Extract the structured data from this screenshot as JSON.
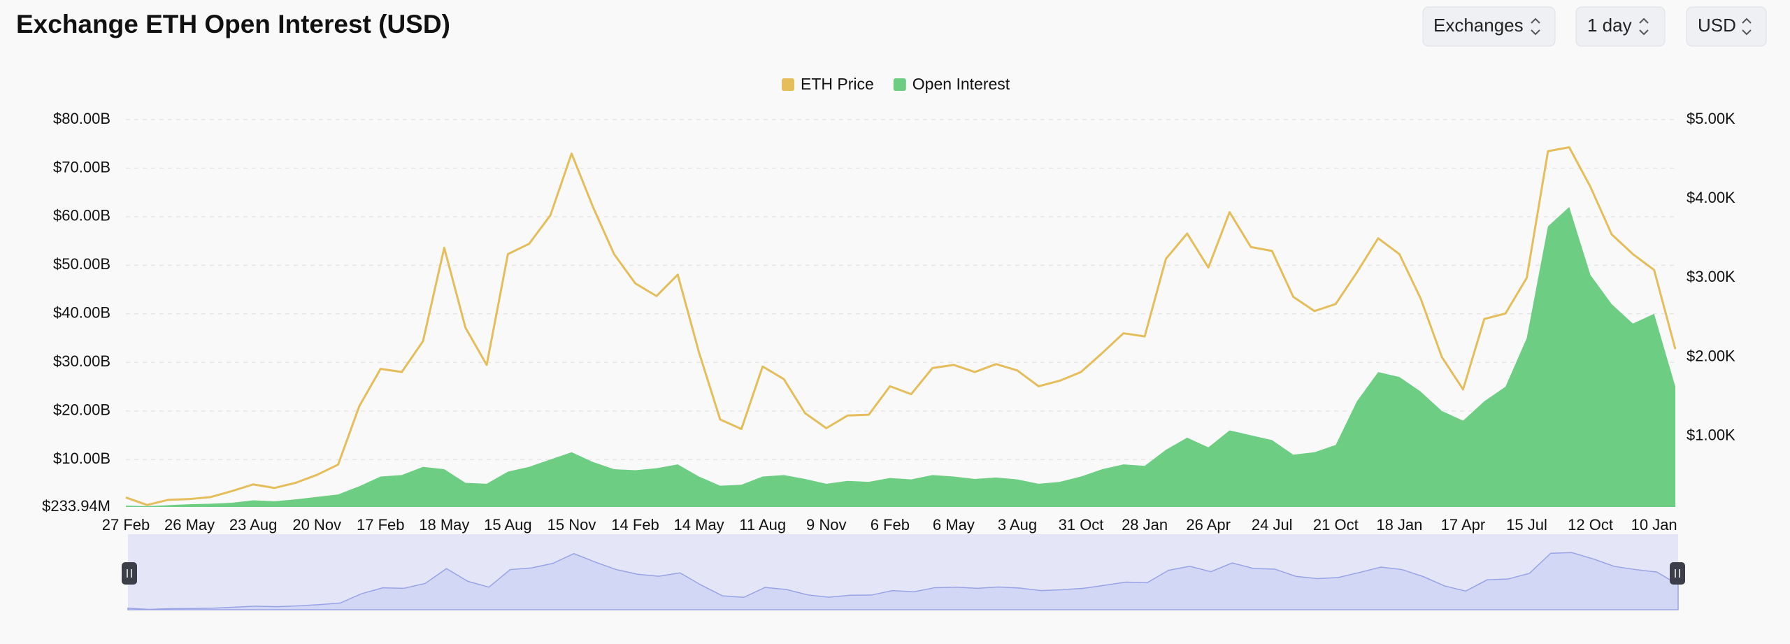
{
  "controls": [
    "Exchanges",
    "1 day",
    "USD"
  ],
  "chart_data": {
    "type": "line",
    "title": "Exchange ETH Open Interest (USD)",
    "categories": [
      "27 Feb",
      null,
      null,
      "26 May",
      null,
      null,
      "23 Aug",
      null,
      null,
      "20 Nov",
      null,
      null,
      "17 Feb",
      null,
      null,
      "18 May",
      null,
      null,
      "15 Aug",
      null,
      null,
      "15 Nov",
      null,
      null,
      "14 Feb",
      null,
      null,
      "14 May",
      null,
      null,
      "11 Aug",
      null,
      null,
      "9 Nov",
      null,
      null,
      "6 Feb",
      null,
      null,
      "6 May",
      null,
      null,
      "3 Aug",
      null,
      null,
      "31 Oct",
      null,
      null,
      "28 Jan",
      null,
      null,
      "26 Apr",
      null,
      null,
      "24 Jul",
      null,
      null,
      "21 Oct",
      null,
      null,
      "18 Jan",
      null,
      null,
      "17 Apr",
      null,
      null,
      "15 Jul",
      null,
      null,
      "12 Oct",
      null,
      null,
      "10 Jan",
      null
    ],
    "series": [
      {
        "name": "ETH Price",
        "color": "#e5bd5b",
        "axis": "y2",
        "type": "line",
        "values": [
          225,
          130,
          195,
          205,
          230,
          305,
          390,
          345,
          410,
          510,
          640,
          1380,
          1850,
          1810,
          2200,
          3380,
          2370,
          1900,
          3300,
          3430,
          3790,
          4570,
          3900,
          3300,
          2930,
          2770,
          3040,
          2060,
          1210,
          1090,
          1880,
          1720,
          1290,
          1100,
          1260,
          1270,
          1630,
          1530,
          1860,
          1900,
          1810,
          1910,
          1830,
          1630,
          1700,
          1810,
          2050,
          2300,
          2260,
          3240,
          3560,
          3130,
          3830,
          3390,
          3340,
          2760,
          2580,
          2670,
          3070,
          3500,
          3300,
          2740,
          2000,
          1590,
          2480,
          2550,
          3000,
          4600,
          4650,
          4150,
          3550,
          3300,
          3100,
          2100
        ]
      },
      {
        "name": "Open Interest",
        "color": "#6dcd82",
        "type": "area",
        "values": [
          500000000,
          400000000,
          600000000,
          800000000,
          900000000,
          1100000000,
          1600000000,
          1400000000,
          1800000000,
          2300000000,
          2800000000,
          4500000000,
          6500000000,
          6800000000,
          8500000000,
          8000000000,
          5200000000,
          5000000000,
          7500000000,
          8500000000,
          10000000000,
          11500000000,
          9500000000,
          8000000000,
          7800000000,
          8200000000,
          9000000000,
          6500000000,
          4600000000,
          4800000000,
          6500000000,
          6800000000,
          6000000000,
          5000000000,
          5600000000,
          5400000000,
          6200000000,
          5900000000,
          6800000000,
          6500000000,
          6000000000,
          6300000000,
          5900000000,
          5000000000,
          5400000000,
          6500000000,
          8000000000,
          9000000000,
          8700000000,
          12000000000,
          14500000000,
          12500000000,
          16000000000,
          15000000000,
          14000000000,
          11000000000,
          11500000000,
          13000000000,
          22000000000,
          28000000000,
          27000000000,
          24000000000,
          20000000000,
          18000000000,
          22000000000,
          25000000000,
          35000000000,
          58000000000,
          62000000000,
          48000000000,
          42000000000,
          38000000000,
          40000000000,
          25000000000
        ]
      }
    ],
    "ylim": [
      233940000,
      80000000000
    ],
    "yticks": [
      {
        "value": 233940000,
        "label": "$233.94M"
      },
      {
        "value": 10000000000,
        "label": "$10.00B"
      },
      {
        "value": 20000000000,
        "label": "$20.00B"
      },
      {
        "value": 30000000000,
        "label": "$30.00B"
      },
      {
        "value": 40000000000,
        "label": "$40.00B"
      },
      {
        "value": 50000000000,
        "label": "$50.00B"
      },
      {
        "value": 60000000000,
        "label": "$60.00B"
      },
      {
        "value": 70000000000,
        "label": "$70.00B"
      },
      {
        "value": 80000000000,
        "label": "$80.00B"
      }
    ],
    "y2lim": [
      105,
      5000
    ],
    "y2ticks": [
      {
        "value": 1000,
        "label": "$1.00K"
      },
      {
        "value": 2000,
        "label": "$2.00K"
      },
      {
        "value": 3000,
        "label": "$3.00K"
      },
      {
        "value": 4000,
        "label": "$4.00K"
      },
      {
        "value": 5000,
        "label": "$5.00K"
      }
    ],
    "grid": true,
    "legend": "top"
  }
}
